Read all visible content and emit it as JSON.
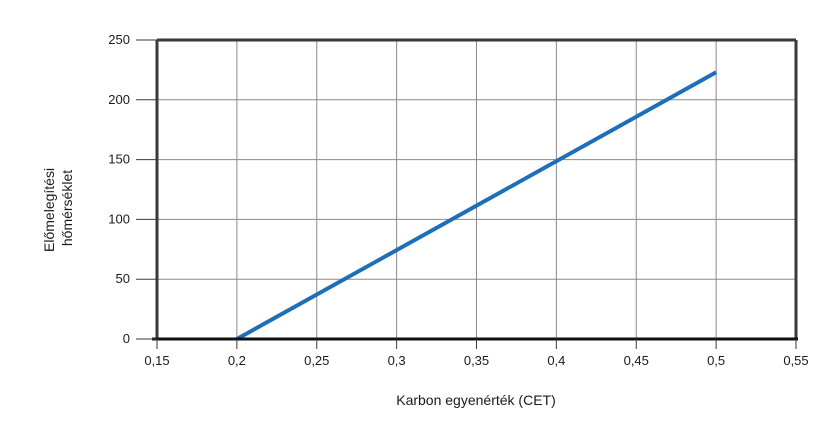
{
  "chart_data": {
    "type": "line",
    "title": "",
    "xlabel": "Karbon egyenérték (CET)",
    "ylabel_lines": [
      "Előmelegítési",
      "hőmérséklet"
    ],
    "xlim": [
      0.15,
      0.55
    ],
    "ylim": [
      0,
      250
    ],
    "x_ticks": [
      0.15,
      0.2,
      0.25,
      0.3,
      0.35,
      0.4,
      0.45,
      0.5,
      0.55
    ],
    "x_tick_labels": [
      "0,15",
      "0,2",
      "0,25",
      "0,3",
      "0,35",
      "0,4",
      "0,45",
      "0,5",
      "0,55"
    ],
    "y_ticks": [
      0,
      50,
      100,
      150,
      200,
      250
    ],
    "y_tick_labels": [
      "0",
      "50",
      "100",
      "150",
      "200",
      "250"
    ],
    "grid": true,
    "legend": "none",
    "series": [
      {
        "x": [
          0.2,
          0.5
        ],
        "y": [
          0,
          223
        ],
        "color": "#1f6fb7"
      }
    ]
  }
}
